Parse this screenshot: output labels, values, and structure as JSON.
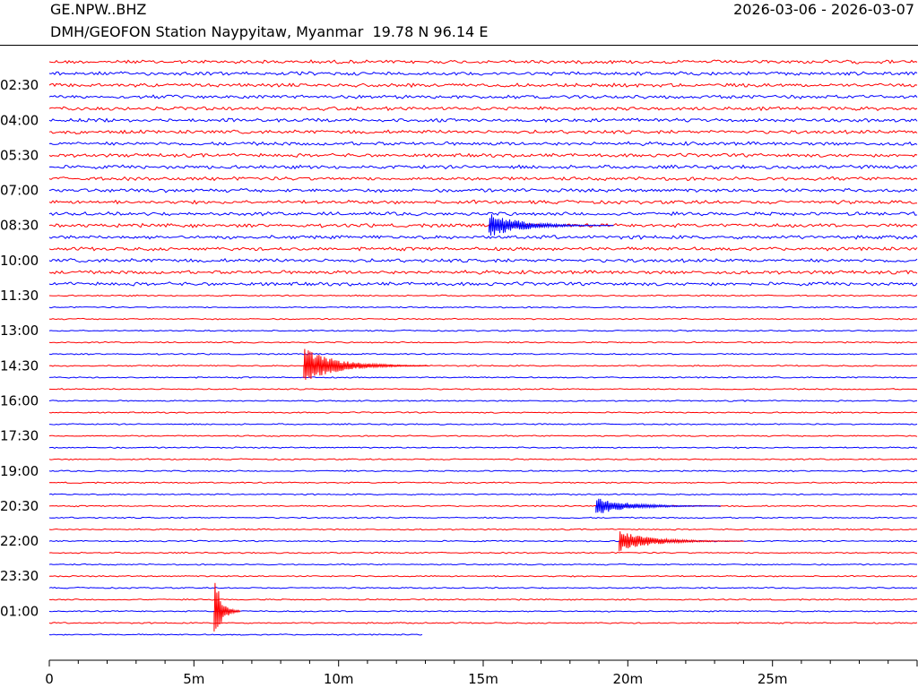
{
  "header": {
    "station_code": "GE.NPW..BHZ",
    "station_description": "DMH/GEOFON Station Naypyitaw, Myanmar  19.78 N 96.14 E",
    "date_range": "2026-03-06 - 2026-03-07"
  },
  "chart_data": {
    "type": "line",
    "subtype": "helicorder",
    "x_axis": {
      "unit": "minutes",
      "range": [
        0,
        30
      ],
      "ticks": [
        {
          "value": 0,
          "label": "0"
        },
        {
          "value": 5,
          "label": "5m"
        },
        {
          "value": 10,
          "label": "10m"
        },
        {
          "value": 15,
          "label": "15m"
        },
        {
          "value": 20,
          "label": "20m"
        },
        {
          "value": 25,
          "label": "25m"
        }
      ]
    },
    "row_labels": [
      "02:30",
      "04:00",
      "05:30",
      "07:00",
      "08:30",
      "10:00",
      "11:30",
      "13:00",
      "14:30",
      "16:00",
      "17:30",
      "19:00",
      "20:30",
      "22:00",
      "23:30",
      "01:00"
    ],
    "trace_colors": [
      "#ff0000",
      "#0000ff"
    ],
    "events": [
      {
        "row_label": "08:30",
        "minute": 15.2,
        "amplitude": 14,
        "color": "#0000ff"
      },
      {
        "row_label": "14:30",
        "minute": 8.8,
        "amplitude": 20,
        "color": "#ff0000"
      },
      {
        "row_label": "20:30",
        "minute": 18.9,
        "amplitude": 10,
        "color": "#0000ff"
      },
      {
        "row_label": "22:00",
        "minute": 19.7,
        "amplitude": 12,
        "color": "#ff0000"
      },
      {
        "row_label": "01:00",
        "minute": 5.7,
        "amplitude": 45,
        "color": "#ff0000"
      }
    ]
  }
}
